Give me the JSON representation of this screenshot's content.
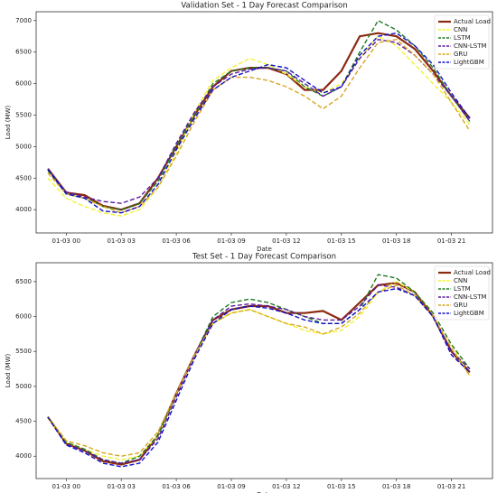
{
  "chart_data": [
    {
      "type": "line",
      "title": "Validation Set - 1 Day Forecast Comparison",
      "x_label": "Date",
      "y_label": "Load (MW)",
      "categories": [
        null,
        "01-03 00",
        null,
        null,
        "01-03 03",
        null,
        null,
        "01-03 06",
        null,
        null,
        "01-03 09",
        null,
        null,
        "01-03 12",
        null,
        null,
        "01-03 15",
        null,
        null,
        "01-03 18",
        null,
        null,
        "01-03 21",
        null
      ],
      "ylim": [
        3630,
        7140
      ],
      "yticks": [
        4000,
        4500,
        5000,
        5500,
        6000,
        6500,
        7000
      ],
      "legend": "upper right",
      "series": [
        {
          "name": "Actual Load",
          "color": "#8b2a10",
          "values": [
            4650,
            4270,
            4230,
            4060,
            4000,
            4100,
            4500,
            5000,
            5500,
            5950,
            6200,
            6250,
            6250,
            6150,
            5900,
            5900,
            6200,
            6750,
            6800,
            6750,
            6550,
            6200,
            5800,
            5450
          ]
        },
        {
          "name": "CNN",
          "color": "#f2f230",
          "values": [
            4500,
            4180,
            4050,
            3950,
            3900,
            4000,
            4350,
            4900,
            5550,
            6050,
            6250,
            6400,
            6300,
            6150,
            5950,
            5850,
            6000,
            6400,
            6750,
            6600,
            6300,
            6000,
            5700,
            5350
          ]
        },
        {
          "name": "LSTM",
          "color": "#1e7a1e",
          "values": [
            4620,
            4250,
            4200,
            4050,
            4000,
            4100,
            4450,
            5000,
            5500,
            6000,
            6200,
            6250,
            6250,
            6200,
            5950,
            5800,
            5950,
            6500,
            7000,
            6850,
            6600,
            6250,
            5800,
            5400
          ]
        },
        {
          "name": "CNN-LSTM",
          "color": "#5a1aa0",
          "values": [
            4640,
            4280,
            4200,
            4130,
            4100,
            4200,
            4500,
            5050,
            5550,
            5950,
            6150,
            6230,
            6250,
            6200,
            6000,
            5800,
            5950,
            6400,
            6700,
            6650,
            6450,
            6150,
            5800,
            5400
          ]
        },
        {
          "name": "GRU",
          "color": "#d9a520",
          "values": [
            4580,
            4250,
            4180,
            4050,
            3950,
            4050,
            4350,
            4850,
            5400,
            5900,
            6100,
            6100,
            6050,
            5950,
            5800,
            5600,
            5800,
            6250,
            6650,
            6700,
            6450,
            6150,
            5700,
            5250
          ]
        },
        {
          "name": "LightGBM",
          "color": "#1010c8",
          "values": [
            4640,
            4250,
            4180,
            3980,
            3950,
            4050,
            4400,
            4950,
            5450,
            5900,
            6100,
            6200,
            6300,
            6250,
            6050,
            5850,
            5950,
            6450,
            6750,
            6800,
            6600,
            6300,
            5850,
            5450
          ]
        }
      ]
    },
    {
      "type": "line",
      "title": "Test Set - 1 Day Forecast Comparison",
      "x_label": "Date",
      "y_label": "Load (MW)",
      "categories": [
        null,
        "01-03 00",
        null,
        null,
        "01-03 03",
        null,
        null,
        "01-03 06",
        null,
        null,
        "01-03 09",
        null,
        null,
        "01-03 12",
        null,
        null,
        "01-03 15",
        null,
        null,
        "01-03 18",
        null,
        null,
        "01-03 21",
        null
      ],
      "ylim": [
        3680,
        6770
      ],
      "yticks": [
        4000,
        4500,
        5000,
        5500,
        6000,
        6500
      ],
      "legend": "upper right",
      "series": [
        {
          "name": "Actual Load",
          "color": "#8b2a10",
          "values": [
            4560,
            4180,
            4080,
            3930,
            3880,
            3950,
            4300,
            4900,
            5450,
            5950,
            6100,
            6150,
            6150,
            6050,
            6050,
            6080,
            5950,
            6200,
            6450,
            6480,
            6350,
            6000,
            5500,
            5200
          ]
        },
        {
          "name": "CNN",
          "color": "#f2f230",
          "values": [
            4540,
            4200,
            4100,
            4000,
            3950,
            4000,
            4300,
            4850,
            5450,
            5900,
            6050,
            6100,
            6000,
            5900,
            5800,
            5750,
            5800,
            6000,
            6350,
            6500,
            6350,
            6050,
            5600,
            5150
          ]
        },
        {
          "name": "LSTM",
          "color": "#1e7a1e",
          "values": [
            4560,
            4200,
            4100,
            3950,
            3900,
            4000,
            4300,
            4900,
            5450,
            6000,
            6200,
            6250,
            6200,
            6100,
            6000,
            5900,
            5900,
            6100,
            6600,
            6550,
            6350,
            6050,
            5600,
            5250
          ]
        },
        {
          "name": "CNN-LSTM",
          "color": "#5a1aa0",
          "values": [
            4560,
            4170,
            4080,
            3950,
            3900,
            3950,
            4250,
            4850,
            5450,
            5950,
            6150,
            6180,
            6150,
            6100,
            6000,
            5950,
            5950,
            6150,
            6450,
            6420,
            6300,
            6000,
            5500,
            5250
          ]
        },
        {
          "name": "GRU",
          "color": "#d9a520",
          "values": [
            4570,
            4220,
            4150,
            4050,
            4000,
            4050,
            4350,
            4900,
            5450,
            5900,
            6050,
            6100,
            6000,
            5900,
            5850,
            5750,
            5850,
            6050,
            6350,
            6450,
            6300,
            6000,
            5550,
            5150
          ]
        },
        {
          "name": "LightGBM",
          "color": "#1010c8",
          "values": [
            4560,
            4160,
            4050,
            3900,
            3850,
            3900,
            4200,
            4800,
            5400,
            5900,
            6100,
            6150,
            6120,
            6050,
            5950,
            5900,
            5900,
            6100,
            6350,
            6400,
            6300,
            6000,
            5450,
            5200
          ]
        }
      ]
    }
  ]
}
